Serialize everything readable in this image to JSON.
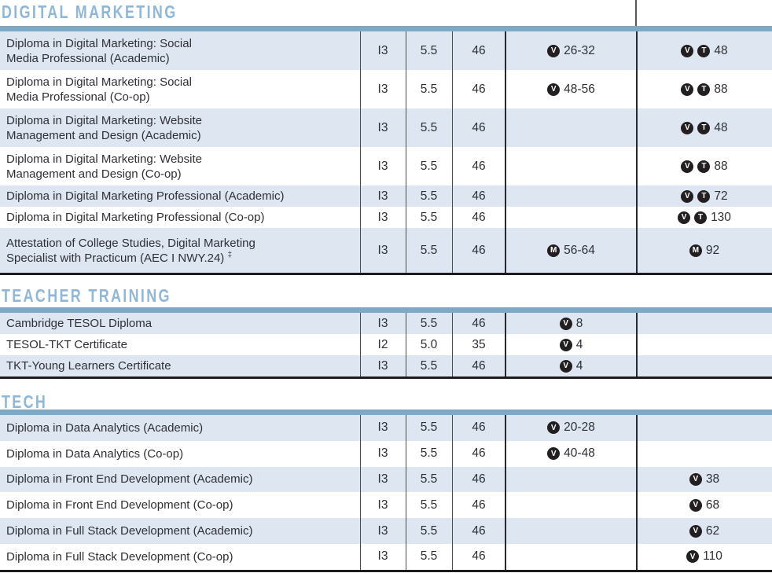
{
  "colors": {
    "section_title": "#90b7d5",
    "header_bar": "#7fa8c6",
    "row_shaded": "#dee7f1",
    "badge": "#231f20",
    "text": "#2e2f36"
  },
  "sections": [
    {
      "title": "DIGITAL MARKETING",
      "rows": [
        {
          "program": "Diploma in Digital Marketing: Social\nMedia Professional (Academic)",
          "level": "I3",
          "ielts": "5.5",
          "weeks": "46",
          "intake": {
            "badges": [
              "V"
            ],
            "text": "26-32"
          },
          "hours": {
            "badges": [
              "V",
              "T"
            ],
            "text": "48"
          }
        },
        {
          "program": "Diploma in Digital Marketing: Social\nMedia Professional (Co-op)",
          "level": "I3",
          "ielts": "5.5",
          "weeks": "46",
          "intake": {
            "badges": [
              "V"
            ],
            "text": "48-56"
          },
          "hours": {
            "badges": [
              "V",
              "T"
            ],
            "text": "88"
          }
        },
        {
          "program": "Diploma in Digital Marketing: Website\nManagement and Design (Academic)",
          "level": "I3",
          "ielts": "5.5",
          "weeks": "46",
          "intake": null,
          "hours": {
            "badges": [
              "V",
              "T"
            ],
            "text": "48"
          }
        },
        {
          "program": "Diploma in Digital Marketing: Website\nManagement and Design (Co-op)",
          "level": "I3",
          "ielts": "5.5",
          "weeks": "46",
          "intake": null,
          "hours": {
            "badges": [
              "V",
              "T"
            ],
            "text": "88"
          }
        },
        {
          "program": "Diploma in Digital Marketing Professional (Academic)",
          "level": "I3",
          "ielts": "5.5",
          "weeks": "46",
          "intake": null,
          "hours": {
            "badges": [
              "V",
              "T"
            ],
            "text": "72"
          }
        },
        {
          "program": "Diploma in Digital Marketing Professional (Co-op)",
          "level": "I3",
          "ielts": "5.5",
          "weeks": "46",
          "intake": null,
          "hours": {
            "badges": [
              "V",
              "T"
            ],
            "text": "130"
          }
        },
        {
          "program": "Attestation of College Studies, Digital Marketing\nSpecialist with Practicum (AEC I NWY.24)",
          "program_sup": "‡",
          "level": "I3",
          "ielts": "5.5",
          "weeks": "46",
          "intake": {
            "badges": [
              "M"
            ],
            "text": "56-64"
          },
          "hours": {
            "badges": [
              "M"
            ],
            "text": "92"
          }
        }
      ]
    },
    {
      "title": "TEACHER TRAINING",
      "rows": [
        {
          "program": "Cambridge TESOL Diploma",
          "level": "I3",
          "ielts": "5.5",
          "weeks": "46",
          "intake": {
            "badges": [
              "V"
            ],
            "text": "8"
          },
          "hours": null
        },
        {
          "program": "TESOL-TKT Certificate",
          "level": "I2",
          "ielts": "5.0",
          "weeks": "35",
          "intake": {
            "badges": [
              "V"
            ],
            "text": "4"
          },
          "hours": null
        },
        {
          "program": "TKT-Young Learners Certificate",
          "level": "I3",
          "ielts": "5.5",
          "weeks": "46",
          "intake": {
            "badges": [
              "V"
            ],
            "text": "4"
          },
          "hours": null
        }
      ]
    },
    {
      "title": "TECH",
      "rows": [
        {
          "program": "Diploma in Data Analytics (Academic)",
          "level": "I3",
          "ielts": "5.5",
          "weeks": "46",
          "intake": {
            "badges": [
              "V"
            ],
            "text": "20-28"
          },
          "hours": null
        },
        {
          "program": "Diploma in Data Analytics (Co-op)",
          "level": "I3",
          "ielts": "5.5",
          "weeks": "46",
          "intake": {
            "badges": [
              "V"
            ],
            "text": "40-48"
          },
          "hours": null
        },
        {
          "program": "Diploma in Front End Development (Academic)",
          "level": "I3",
          "ielts": "5.5",
          "weeks": "46",
          "intake": null,
          "hours": {
            "badges": [
              "V"
            ],
            "text": "38"
          }
        },
        {
          "program": "Diploma in Front End Development (Co-op)",
          "level": "I3",
          "ielts": "5.5",
          "weeks": "46",
          "intake": null,
          "hours": {
            "badges": [
              "V"
            ],
            "text": "68"
          }
        },
        {
          "program": "Diploma in Full Stack Development (Academic)",
          "level": "I3",
          "ielts": "5.5",
          "weeks": "46",
          "intake": null,
          "hours": {
            "badges": [
              "V"
            ],
            "text": "62"
          }
        },
        {
          "program": "Diploma in Full Stack Development (Co-op)",
          "level": "I3",
          "ielts": "5.5",
          "weeks": "46",
          "intake": null,
          "hours": {
            "badges": [
              "V"
            ],
            "text": "110"
          }
        }
      ]
    }
  ]
}
